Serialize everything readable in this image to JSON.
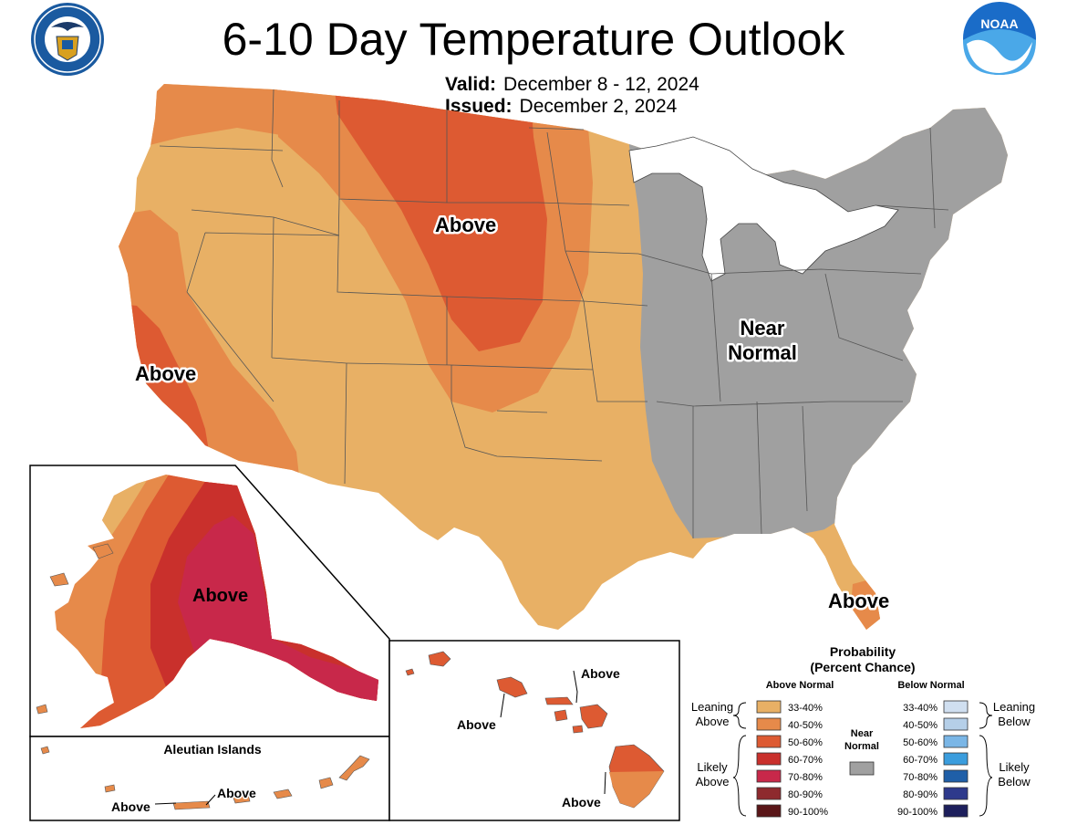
{
  "title": "6-10 Day Temperature Outlook",
  "valid_label": "Valid:",
  "valid_dates": "December 8 - 12, 2024",
  "issued_label": "Issued:",
  "issued_date": "December 2, 2024",
  "logos": {
    "left": "department-of-commerce-seal",
    "right": "noaa-logo",
    "noaa_text": "NOAA"
  },
  "regions": {
    "north_plains": "Above",
    "california": "Above",
    "east": [
      "Near",
      "Normal"
    ],
    "florida": "Above",
    "alaska": "Above",
    "hawaii_left": "Above",
    "hawaii_maui": "Above",
    "hawaii_big_island": "Above",
    "aleutian_title": "Aleutian Islands",
    "aleutian_left": "Above",
    "aleutian_right": "Above"
  },
  "legend": {
    "title": "Probability",
    "subtitle": "(Percent Chance)",
    "above_header": "Above Normal",
    "below_header": "Below Normal",
    "leaning_above": [
      "Leaning",
      "Above"
    ],
    "likely_above": [
      "Likely",
      "Above"
    ],
    "leaning_below": [
      "Leaning",
      "Below"
    ],
    "likely_below": [
      "Likely",
      "Below"
    ],
    "near_normal": [
      "Near",
      "Normal"
    ],
    "near_color": "#a0a0a0",
    "above": [
      {
        "label": "33-40%",
        "color": "#e8b065"
      },
      {
        "label": "40-50%",
        "color": "#e68a4a"
      },
      {
        "label": "50-60%",
        "color": "#dd5a32"
      },
      {
        "label": "60-70%",
        "color": "#c9302c"
      },
      {
        "label": "70-80%",
        "color": "#c8284a"
      },
      {
        "label": "80-90%",
        "color": "#8e2a2e"
      },
      {
        "label": "90-100%",
        "color": "#5a1618"
      }
    ],
    "below": [
      {
        "label": "33-40%",
        "color": "#d0dff0"
      },
      {
        "label": "40-50%",
        "color": "#b5cfe8"
      },
      {
        "label": "50-60%",
        "color": "#7ab6e6"
      },
      {
        "label": "60-70%",
        "color": "#3b9ddd"
      },
      {
        "label": "70-80%",
        "color": "#1f5fa8"
      },
      {
        "label": "80-90%",
        "color": "#2e3a8c"
      },
      {
        "label": "90-100%",
        "color": "#1d1f5c"
      }
    ]
  }
}
